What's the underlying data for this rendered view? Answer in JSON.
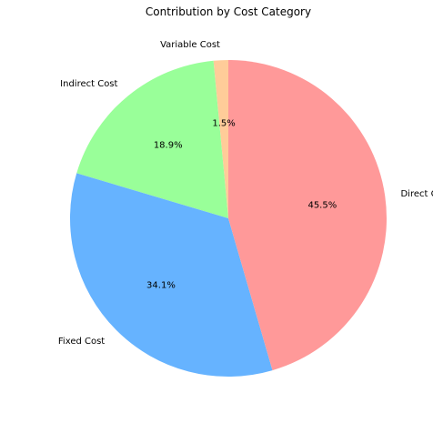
{
  "chart_data": {
    "type": "pie",
    "title": "Contribution by Cost Category",
    "slices": [
      {
        "label": "Variable Cost",
        "value": 1.5,
        "pct_label": "1.5%",
        "color": "#ffcc99"
      },
      {
        "label": "Indirect Cost",
        "value": 18.9,
        "pct_label": "18.9%",
        "color": "#99ff99"
      },
      {
        "label": "Fixed Cost",
        "value": 34.1,
        "pct_label": "34.1%",
        "color": "#66b3ff"
      },
      {
        "label": "Direct Cost",
        "value": 45.5,
        "pct_label": "45.5%",
        "color": "#ff9999"
      }
    ],
    "start_angle_deg": 90,
    "direction": "counterclockwise"
  }
}
